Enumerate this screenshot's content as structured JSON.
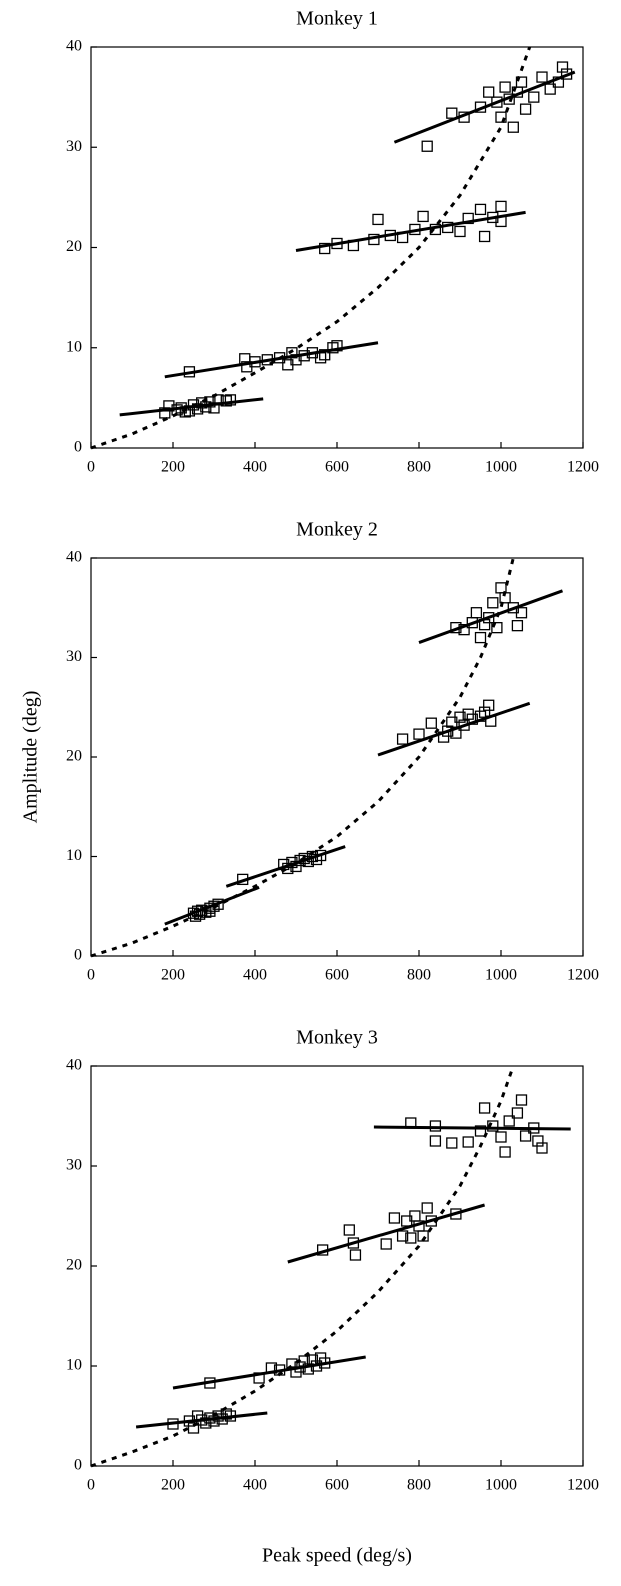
{
  "chart_data": [
    {
      "type": "scatter",
      "title": "Monkey 1",
      "xlim": [
        0,
        1200
      ],
      "ylim": [
        0,
        40
      ],
      "xticks": [
        0,
        200,
        400,
        600,
        800,
        1000,
        1200
      ],
      "yticks": [
        0,
        10,
        20,
        30,
        40
      ],
      "color": "#000000",
      "x": [
        180,
        190,
        210,
        220,
        230,
        240,
        250,
        260,
        270,
        280,
        290,
        300,
        310,
        330,
        340,
        240,
        375,
        380,
        400,
        430,
        460,
        480,
        490,
        500,
        520,
        540,
        560,
        570,
        590,
        600,
        570,
        600,
        640,
        690,
        700,
        730,
        760,
        790,
        810,
        840,
        870,
        900,
        920,
        950,
        960,
        980,
        1000,
        1000,
        820,
        880,
        910,
        950,
        970,
        990,
        1000,
        1010,
        1020,
        1030,
        1040,
        1050,
        1060,
        1080,
        1100,
        1120,
        1140,
        1150,
        1160
      ],
      "values": [
        3.5,
        4.2,
        3.8,
        4.0,
        3.6,
        3.7,
        4.3,
        3.9,
        4.5,
        4.1,
        4.6,
        4.0,
        4.8,
        4.7,
        4.8,
        7.6,
        8.9,
        8.1,
        8.6,
        8.8,
        9.0,
        8.3,
        9.5,
        8.8,
        9.2,
        9.5,
        9.0,
        9.3,
        10.0,
        10.2,
        19.9,
        20.4,
        20.2,
        20.8,
        22.8,
        21.2,
        21.0,
        21.8,
        23.1,
        21.8,
        22.0,
        21.6,
        22.9,
        23.8,
        21.1,
        23.0,
        24.1,
        22.6,
        30.1,
        33.4,
        33.0,
        34.0,
        35.5,
        34.5,
        33.0,
        36.0,
        34.8,
        32.0,
        35.5,
        36.5,
        33.8,
        35.0,
        37.0,
        35.8,
        36.5,
        38.0,
        37.3
      ],
      "fits": [
        {
          "x": [
            70,
            420
          ],
          "values": [
            3.3,
            4.9
          ]
        },
        {
          "x": [
            180,
            700
          ],
          "values": [
            7.1,
            10.5
          ]
        },
        {
          "x": [
            500,
            1060
          ],
          "values": [
            19.7,
            23.5
          ]
        },
        {
          "x": [
            740,
            1180
          ],
          "values": [
            30.5,
            37.5
          ]
        }
      ],
      "curve": {
        "x": [
          0,
          100,
          200,
          300,
          400,
          500,
          600,
          700,
          800,
          900,
          1000,
          1070
        ],
        "values": [
          0,
          1.4,
          3.2,
          5.2,
          7.5,
          9.9,
          12.6,
          16.0,
          20.0,
          25.2,
          32.0,
          40.0
        ]
      }
    },
    {
      "type": "scatter",
      "title": "Monkey 2",
      "ylabel": "Amplitude (deg)",
      "xlim": [
        0,
        1200
      ],
      "ylim": [
        0,
        40
      ],
      "xticks": [
        0,
        200,
        400,
        600,
        800,
        1000,
        1200
      ],
      "yticks": [
        0,
        10,
        20,
        30,
        40
      ],
      "color": "#000000",
      "x": [
        250,
        255,
        260,
        265,
        270,
        280,
        290,
        290,
        300,
        310,
        370,
        470,
        480,
        490,
        500,
        510,
        520,
        530,
        540,
        550,
        560,
        760,
        800,
        830,
        860,
        870,
        880,
        890,
        900,
        910,
        920,
        930,
        950,
        960,
        970,
        975,
        890,
        910,
        930,
        940,
        950,
        960,
        970,
        980,
        990,
        1000,
        1010,
        1030,
        1040,
        1050
      ],
      "values": [
        4.3,
        4.0,
        4.5,
        4.2,
        4.6,
        4.4,
        4.8,
        4.5,
        5.0,
        5.2,
        7.7,
        9.2,
        8.8,
        9.4,
        9.0,
        9.6,
        9.8,
        9.5,
        10.0,
        9.7,
        10.1,
        21.8,
        22.3,
        23.4,
        22.0,
        22.6,
        23.5,
        22.4,
        24.0,
        23.2,
        24.3,
        23.8,
        24.1,
        24.5,
        25.2,
        23.6,
        33.0,
        32.8,
        33.5,
        34.5,
        32.0,
        33.3,
        34.0,
        35.5,
        33.0,
        37.0,
        36.0,
        35.0,
        33.2,
        34.5
      ],
      "fits": [
        {
          "x": [
            180,
            410
          ],
          "values": [
            3.2,
            6.9
          ]
        },
        {
          "x": [
            330,
            620
          ],
          "values": [
            7.0,
            11.0
          ]
        },
        {
          "x": [
            700,
            1070
          ],
          "values": [
            20.2,
            25.4
          ]
        },
        {
          "x": [
            800,
            1150
          ],
          "values": [
            31.5,
            36.7
          ]
        }
      ],
      "curve": {
        "x": [
          0,
          100,
          200,
          300,
          400,
          500,
          600,
          700,
          800,
          900,
          950,
          1000,
          1030
        ],
        "values": [
          0,
          1.3,
          3.0,
          4.9,
          7.0,
          9.3,
          12.0,
          15.5,
          20.0,
          26.0,
          30.0,
          35.0,
          40.0
        ]
      }
    },
    {
      "type": "scatter",
      "title": "Monkey 3",
      "xlabel": "Peak speed (deg/s)",
      "xlim": [
        0,
        1200
      ],
      "ylim": [
        0,
        40
      ],
      "xticks": [
        0,
        200,
        400,
        600,
        800,
        1000,
        1200
      ],
      "yticks": [
        0,
        10,
        20,
        30,
        40
      ],
      "color": "#000000",
      "x": [
        200,
        240,
        250,
        260,
        270,
        280,
        290,
        300,
        310,
        320,
        330,
        340,
        290,
        410,
        440,
        460,
        490,
        500,
        510,
        520,
        530,
        540,
        550,
        560,
        570,
        565,
        630,
        640,
        645,
        720,
        740,
        760,
        770,
        780,
        790,
        800,
        810,
        820,
        830,
        890,
        780,
        840,
        840,
        880,
        920,
        950,
        960,
        980,
        1000,
        1010,
        1020,
        1040,
        1050,
        1060,
        1080,
        1090,
        1100
      ],
      "values": [
        4.2,
        4.5,
        3.8,
        5.0,
        4.6,
        4.3,
        4.8,
        4.5,
        5.0,
        4.7,
        5.2,
        5.0,
        8.3,
        8.8,
        9.8,
        9.6,
        10.2,
        9.4,
        9.9,
        10.5,
        9.7,
        10.6,
        10.0,
        10.8,
        10.3,
        21.6,
        23.6,
        22.3,
        21.1,
        22.2,
        24.8,
        23.0,
        24.5,
        22.8,
        25.0,
        24.0,
        23.0,
        25.8,
        24.5,
        25.2,
        34.3,
        34.0,
        32.5,
        32.3,
        32.4,
        33.5,
        35.8,
        34.0,
        32.9,
        31.4,
        34.5,
        35.3,
        36.6,
        33.0,
        33.8,
        32.5,
        31.8
      ],
      "fits": [
        {
          "x": [
            110,
            430
          ],
          "values": [
            3.9,
            5.3
          ]
        },
        {
          "x": [
            200,
            670
          ],
          "values": [
            7.8,
            10.9
          ]
        },
        {
          "x": [
            480,
            960
          ],
          "values": [
            20.4,
            26.1
          ]
        },
        {
          "x": [
            690,
            1170
          ],
          "values": [
            33.9,
            33.7
          ]
        }
      ],
      "curve": {
        "x": [
          0,
          100,
          200,
          300,
          400,
          500,
          600,
          700,
          800,
          900,
          950,
          1000,
          1030
        ],
        "values": [
          0,
          1.4,
          3.0,
          5.1,
          7.5,
          10.3,
          13.5,
          17.4,
          22.0,
          28.0,
          32.0,
          36.5,
          40.0
        ]
      }
    }
  ]
}
